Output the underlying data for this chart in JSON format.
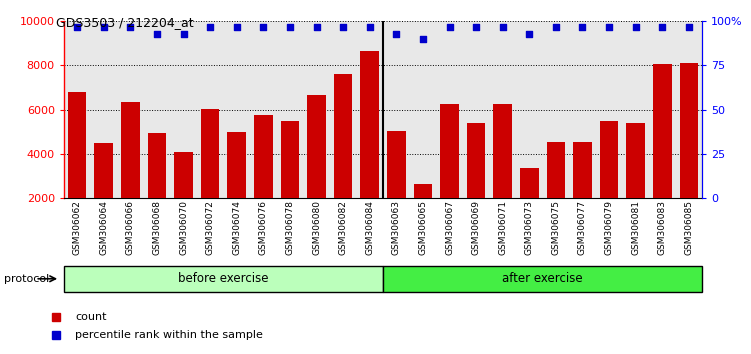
{
  "title": "GDS3503 / 212204_at",
  "samples": [
    "GSM306062",
    "GSM306064",
    "GSM306066",
    "GSM306068",
    "GSM306070",
    "GSM306072",
    "GSM306074",
    "GSM306076",
    "GSM306078",
    "GSM306080",
    "GSM306082",
    "GSM306084",
    "GSM306063",
    "GSM306065",
    "GSM306067",
    "GSM306069",
    "GSM306071",
    "GSM306073",
    "GSM306075",
    "GSM306077",
    "GSM306079",
    "GSM306081",
    "GSM306083",
    "GSM306085"
  ],
  "counts": [
    6800,
    4500,
    6350,
    4950,
    4100,
    6050,
    5000,
    5750,
    5500,
    6650,
    7600,
    8650,
    5050,
    2650,
    6250,
    5400,
    6250,
    3350,
    4550,
    4550,
    5500,
    5400,
    8050,
    8100
  ],
  "percentile_ranks": [
    97,
    97,
    97,
    93,
    93,
    97,
    97,
    97,
    97,
    97,
    97,
    97,
    93,
    90,
    97,
    97,
    97,
    93,
    97,
    97,
    97,
    97,
    97,
    97
  ],
  "n_before": 12,
  "n_after": 12,
  "group_labels": [
    "before exercise",
    "after exercise"
  ],
  "group_colors_before": "#bbffbb",
  "group_colors_after": "#44ee44",
  "bar_color": "#cc0000",
  "dot_color": "#0000cc",
  "ylim_left": [
    2000,
    10000
  ],
  "ylim_right": [
    0,
    100
  ],
  "yticks_left": [
    2000,
    4000,
    6000,
    8000,
    10000
  ],
  "yticks_right": [
    0,
    25,
    50,
    75,
    100
  ],
  "ytick_labels_right": [
    "0",
    "25",
    "50",
    "75",
    "100%"
  ],
  "background_color": "#e8e8e8",
  "protocol_label": "protocol",
  "legend_count_label": "count",
  "legend_pct_label": "percentile rank within the sample"
}
